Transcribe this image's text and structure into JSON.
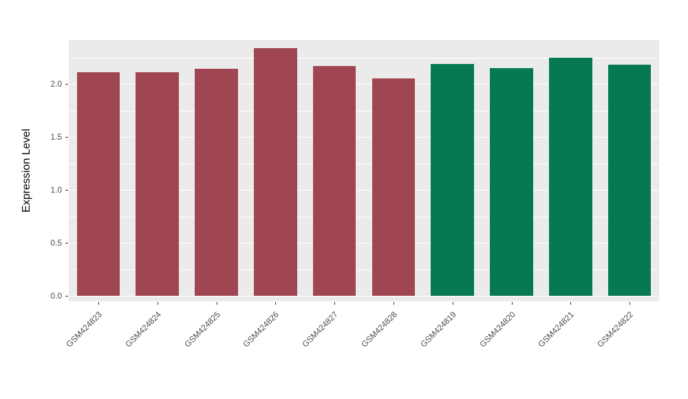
{
  "chart_data": {
    "type": "bar",
    "title": "",
    "xlabel": "",
    "ylabel": "Expression Level",
    "categories": [
      "GSM424823",
      "GSM424824",
      "GSM424825",
      "GSM424826",
      "GSM424827",
      "GSM424828",
      "GSM424819",
      "GSM424820",
      "GSM424821",
      "GSM424822"
    ],
    "values": [
      2.11,
      2.11,
      2.14,
      2.34,
      2.17,
      2.05,
      2.19,
      2.15,
      2.25,
      2.18
    ],
    "bar_colors": [
      "#A04552",
      "#A04552",
      "#A04552",
      "#A04552",
      "#A04552",
      "#A04552",
      "#067951",
      "#067951",
      "#067951",
      "#067951"
    ],
    "group_colors": {
      "left_group": "#A04552",
      "right_group": "#067951"
    },
    "yticks": [
      0.0,
      0.5,
      1.0,
      1.5,
      2.0
    ],
    "ytick_labels": [
      "0.0",
      "0.5",
      "1.0",
      "1.5",
      "2.0"
    ],
    "minor_yticks": [
      0.25,
      0.75,
      1.25,
      1.75,
      2.25
    ],
    "ylim": [
      0,
      2.45
    ],
    "grid": true,
    "legend": "none",
    "panel_background": "#EBEBEB",
    "gridline_color": "#FFFFFF",
    "tick_label_color": "#4d4d4d",
    "axis_title_color": "#000000"
  }
}
